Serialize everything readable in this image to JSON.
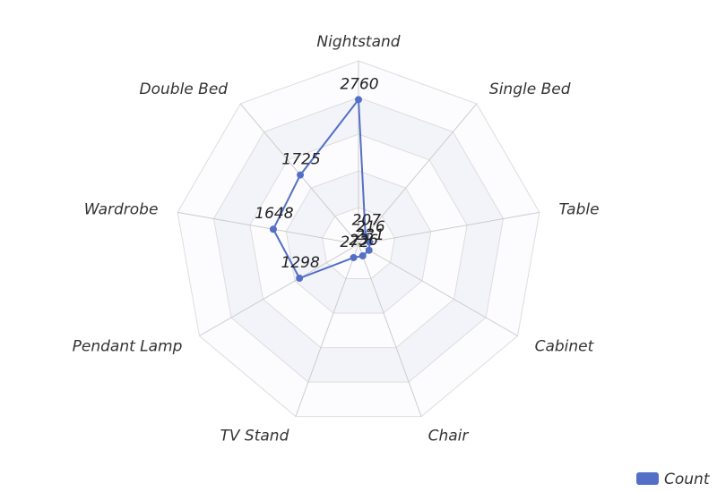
{
  "chart_data": {
    "type": "radar",
    "indicators": [
      "Nightstand",
      "Single Bed",
      "Table",
      "Cabinet",
      "Chair",
      "TV Stand",
      "Pendant Lamp",
      "Wardrobe",
      "Double Bed"
    ],
    "max": 3500,
    "ring_count": 5,
    "series": [
      {
        "name": "Count",
        "color": "#5470c6",
        "values": [
          2760,
          207,
          216,
          231,
          236,
          272,
          1298,
          1648,
          1725
        ]
      }
    ],
    "legend": {
      "position": "bottom-right"
    },
    "colors": {
      "split_area_band": "#f3f4f9",
      "split_line": "#dddddd",
      "axis_line": "#cccccc"
    }
  }
}
